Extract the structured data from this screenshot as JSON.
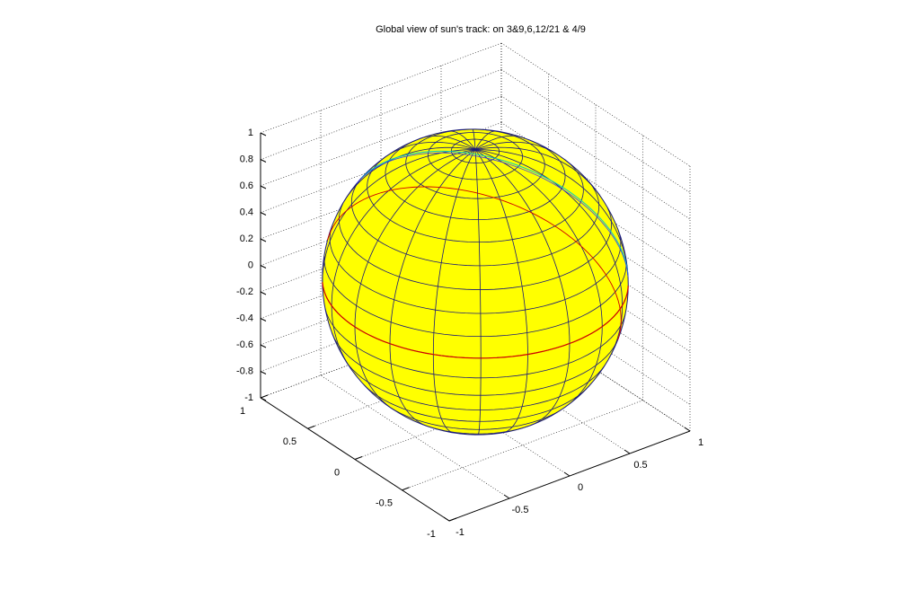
{
  "chart_data": {
    "type": "surface3d",
    "title": "Global view of sun's track:  on 3&9,6,12/21  & 4/9",
    "xlim": [
      -1,
      1
    ],
    "ylim": [
      -1,
      1
    ],
    "zlim": [
      -1,
      1
    ],
    "xticks": [
      -1,
      -0.5,
      0,
      0.5,
      1
    ],
    "yticks": [
      -1,
      -0.5,
      0,
      0.5,
      1
    ],
    "zticks": [
      -1,
      -0.8,
      -0.6,
      -0.4,
      -0.2,
      0,
      0.2,
      0.4,
      0.6,
      0.8,
      1
    ],
    "grid": true,
    "color": "#ffff00"
  }
}
